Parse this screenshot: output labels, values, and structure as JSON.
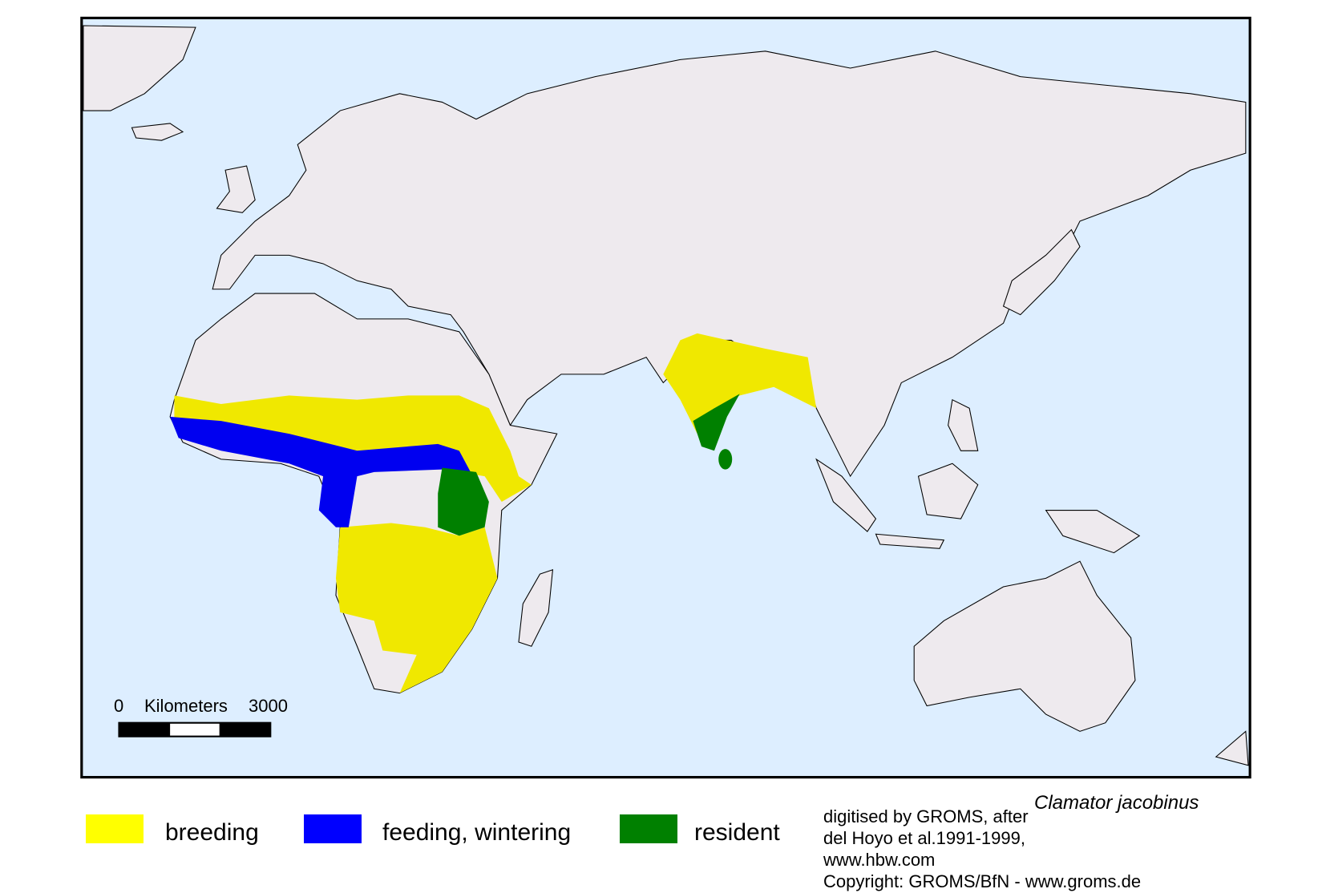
{
  "species_name": "Clamator jacobinus",
  "legend": [
    {
      "label": "breeding",
      "color": "#ffff00"
    },
    {
      "label": "feeding, wintering",
      "color": "#0000ff"
    },
    {
      "label": "resident",
      "color": "#008000"
    }
  ],
  "scale_bar": {
    "start": "0",
    "unit": "Kilometers",
    "end": "3000"
  },
  "credits": [
    "digitised by GROMS, after",
    "del Hoyo et al.1991-1999,",
    "www.hbw.com",
    "Copyright: GROMS/BfN - www.groms.de"
  ],
  "colors": {
    "ocean": "#ddeeff",
    "land": "#eeeaee",
    "breeding_map": "#f0e800",
    "wintering_map": "#0000f0",
    "resident_map": "#008000"
  }
}
